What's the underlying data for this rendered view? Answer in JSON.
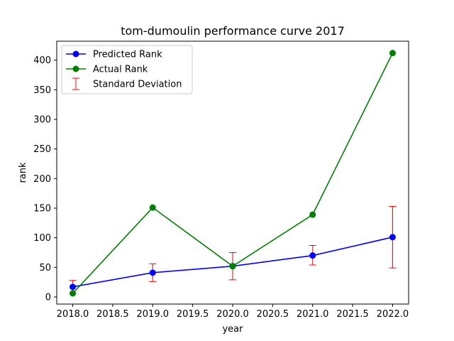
{
  "chart_data": {
    "type": "line",
    "title": "tom-dumoulin performance curve 2017",
    "xlabel": "year",
    "ylabel": "rank",
    "xlim": [
      2017.8,
      2022.2
    ],
    "ylim": [
      -12,
      432
    ],
    "xticks": [
      2018.0,
      2018.5,
      2019.0,
      2019.5,
      2020.0,
      2020.5,
      2021.0,
      2021.5,
      2022.0
    ],
    "xtick_labels": [
      "2018.0",
      "2018.5",
      "2019.0",
      "2019.5",
      "2020.0",
      "2020.5",
      "2021.0",
      "2021.5",
      "2022.0"
    ],
    "yticks": [
      0,
      50,
      100,
      150,
      200,
      250,
      300,
      350,
      400
    ],
    "ytick_labels": [
      "0",
      "50",
      "100",
      "150",
      "200",
      "250",
      "300",
      "350",
      "400"
    ],
    "grid": false,
    "legend_position": "top-left",
    "x": [
      2018,
      2019,
      2020,
      2021,
      2022
    ],
    "series": [
      {
        "name": "Predicted Rank",
        "color": "#0000ff",
        "values": [
          17,
          41,
          52,
          70,
          101
        ]
      },
      {
        "name": "Actual Rank",
        "color": "#008000",
        "values": [
          6,
          151,
          52,
          139,
          412
        ]
      }
    ],
    "error_bars": {
      "name": "Standard Deviation",
      "color": "#ff0000",
      "lower": [
        6,
        26,
        29,
        54,
        49
      ],
      "upper": [
        28,
        56,
        75,
        87,
        153
      ]
    }
  }
}
